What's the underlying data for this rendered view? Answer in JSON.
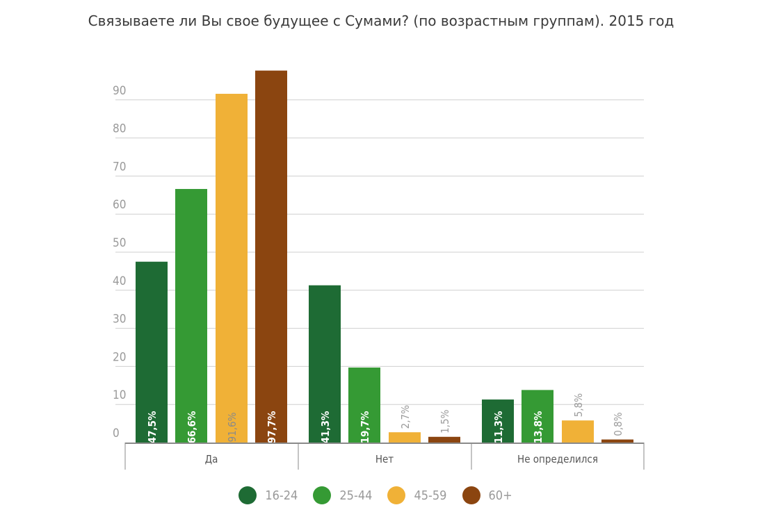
{
  "chart_data": {
    "type": "bar",
    "title": "Связываете ли Вы свое будущее с Сумами? (по возрастным группам). 2015 год",
    "xlabel": "",
    "ylabel": "",
    "categories": [
      "Да",
      "Нет",
      "Не определился"
    ],
    "series": [
      {
        "name": "16-24",
        "color": "#1e6b34",
        "values": [
          47.5,
          41.3,
          11.3
        ],
        "labels": [
          "47,5%",
          "41,3%",
          "11,3%"
        ]
      },
      {
        "name": "25-44",
        "color": "#359a34",
        "values": [
          66.6,
          19.7,
          13.8
        ],
        "labels": [
          "66,6%",
          "19,7%",
          "13,8%"
        ]
      },
      {
        "name": "45-59",
        "color": "#f0b137",
        "values": [
          91.6,
          2.7,
          5.8
        ],
        "labels": [
          "91,6%",
          "2,7%",
          "5,8%"
        ]
      },
      {
        "name": "60+",
        "color": "#8b4510",
        "values": [
          97.7,
          1.5,
          0.8
        ],
        "labels": [
          "97,7%",
          "1,5%",
          "0,8%"
        ]
      }
    ],
    "y_ticks": [
      "0",
      "10",
      "20",
      "30",
      "40",
      "50",
      "60",
      "70",
      "80",
      "90"
    ],
    "ylim": [
      0,
      100
    ],
    "grid": true,
    "legend": "bottom"
  }
}
